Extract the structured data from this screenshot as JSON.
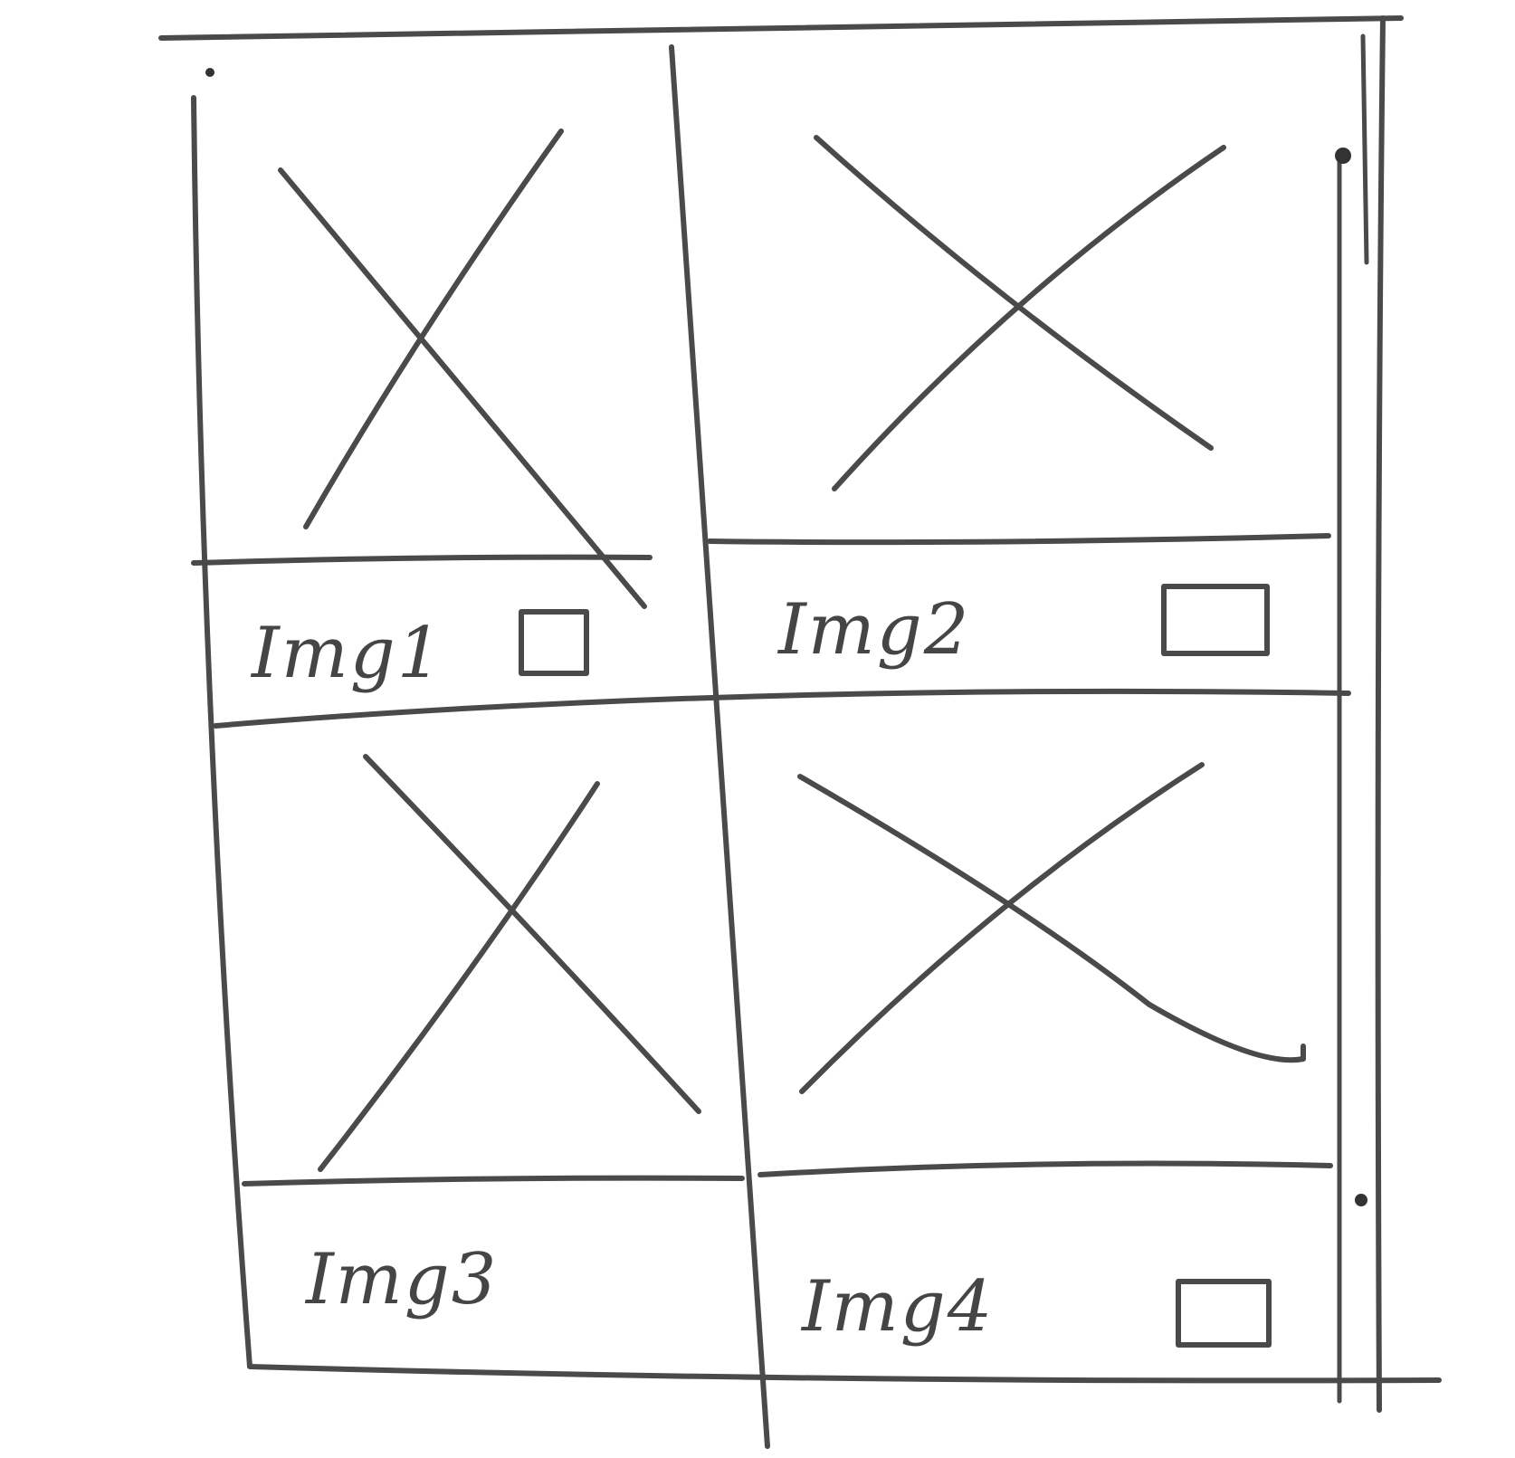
{
  "grid": {
    "cards": [
      {
        "caption": "Img1",
        "has_checkbox": true
      },
      {
        "caption": "Img2",
        "has_checkbox": true
      },
      {
        "caption": "Img3",
        "has_checkbox": false
      },
      {
        "caption": "Img4",
        "has_checkbox": true
      }
    ]
  },
  "icons": {
    "image_placeholder": "image-placeholder-icon",
    "checkbox": "checkbox-icon"
  },
  "colors": {
    "ink": "#4a4a4a",
    "paper": "#ffffff"
  }
}
